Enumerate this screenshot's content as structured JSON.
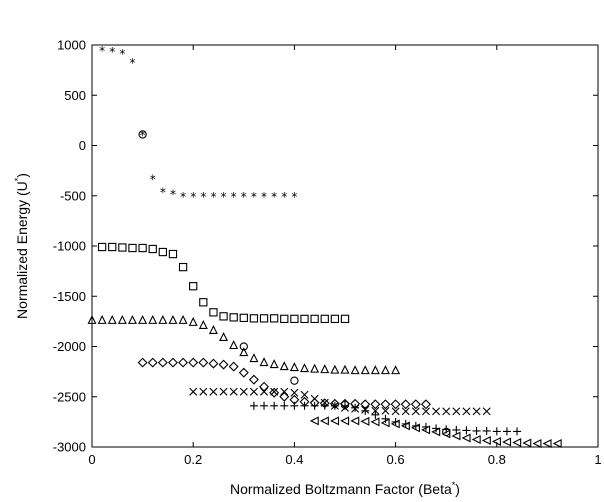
{
  "chart_data": {
    "type": "scatter",
    "title": "",
    "xlabel": "Normalized Boltzmann Factor (Beta",
    "xlabel_sup": "*",
    "xlabel_close": ")",
    "ylabel": "Normalized Energy (U",
    "ylabel_sup": "*",
    "ylabel_close": ")",
    "xlim": [
      0,
      1
    ],
    "ylim": [
      -3000,
      1000
    ],
    "xticks": [
      0,
      0.2,
      0.4,
      0.6,
      0.8,
      1
    ],
    "xtick_labels": [
      "0",
      "0.2",
      "0.4",
      "0.6",
      "0.8",
      "1"
    ],
    "yticks": [
      1000,
      500,
      0,
      -500,
      -1000,
      -1500,
      -2000,
      -2500,
      -3000
    ],
    "ytick_labels": [
      "1000",
      "500",
      "0",
      "-500",
      "-1000",
      "-1500",
      "-2000",
      "-2500",
      "-3000"
    ],
    "grid": false,
    "series": [
      {
        "marker": "asterisk",
        "x": [
          0.02,
          0.04,
          0.06,
          0.08,
          0.1,
          0.12,
          0.14,
          0.16,
          0.18,
          0.2,
          0.22,
          0.24,
          0.26,
          0.28,
          0.3,
          0.32,
          0.34,
          0.36,
          0.38,
          0.4
        ],
        "y": [
          950,
          940,
          920,
          830,
          110,
          -330,
          -460,
          -480,
          -500,
          -500,
          -500,
          -500,
          -500,
          -500,
          -500,
          -500,
          -500,
          -500,
          -500,
          -500
        ]
      },
      {
        "marker": "square",
        "x": [
          0.02,
          0.04,
          0.06,
          0.08,
          0.1,
          0.12,
          0.14,
          0.16,
          0.18,
          0.2,
          0.22,
          0.24,
          0.26,
          0.28,
          0.3,
          0.32,
          0.34,
          0.36,
          0.38,
          0.4,
          0.42,
          0.44,
          0.46,
          0.48,
          0.5
        ],
        "y": [
          -1010,
          -1010,
          -1015,
          -1020,
          -1020,
          -1030,
          -1060,
          -1080,
          -1210,
          -1400,
          -1560,
          -1660,
          -1700,
          -1710,
          -1715,
          -1720,
          -1720,
          -1720,
          -1725,
          -1725,
          -1725,
          -1725,
          -1725,
          -1725,
          -1725
        ]
      },
      {
        "marker": "triangle-up",
        "x": [
          0.0,
          0.02,
          0.04,
          0.06,
          0.08,
          0.1,
          0.12,
          0.14,
          0.16,
          0.18,
          0.2,
          0.22,
          0.24,
          0.26,
          0.28,
          0.3,
          0.32,
          0.34,
          0.36,
          0.38,
          0.4,
          0.42,
          0.44,
          0.46,
          0.48,
          0.5,
          0.52,
          0.54,
          0.56,
          0.58,
          0.6
        ],
        "y": [
          -1740,
          -1740,
          -1740,
          -1740,
          -1740,
          -1740,
          -1740,
          -1740,
          -1740,
          -1740,
          -1760,
          -1790,
          -1840,
          -1910,
          -1990,
          -2060,
          -2120,
          -2160,
          -2180,
          -2200,
          -2210,
          -2220,
          -2225,
          -2230,
          -2235,
          -2235,
          -2240,
          -2240,
          -2240,
          -2240,
          -2240
        ]
      },
      {
        "marker": "diamond",
        "x": [
          0.1,
          0.12,
          0.14,
          0.16,
          0.18,
          0.2,
          0.22,
          0.24,
          0.26,
          0.28,
          0.3,
          0.32,
          0.34,
          0.36,
          0.38,
          0.4,
          0.42,
          0.44,
          0.46,
          0.48,
          0.5,
          0.52,
          0.54,
          0.56,
          0.58,
          0.6,
          0.62,
          0.64,
          0.66
        ],
        "y": [
          -2160,
          -2160,
          -2160,
          -2160,
          -2160,
          -2160,
          -2160,
          -2170,
          -2180,
          -2200,
          -2260,
          -2330,
          -2400,
          -2460,
          -2500,
          -2530,
          -2550,
          -2560,
          -2565,
          -2570,
          -2570,
          -2570,
          -2575,
          -2575,
          -2575,
          -2575,
          -2575,
          -2575,
          -2575
        ]
      },
      {
        "marker": "x",
        "x": [
          0.2,
          0.22,
          0.24,
          0.26,
          0.28,
          0.3,
          0.32,
          0.34,
          0.36,
          0.38,
          0.4,
          0.42,
          0.44,
          0.46,
          0.48,
          0.5,
          0.52,
          0.54,
          0.56,
          0.58,
          0.6,
          0.62,
          0.64,
          0.66,
          0.68,
          0.7,
          0.72,
          0.74,
          0.76,
          0.78
        ],
        "y": [
          -2450,
          -2450,
          -2450,
          -2450,
          -2450,
          -2450,
          -2450,
          -2450,
          -2450,
          -2450,
          -2460,
          -2480,
          -2520,
          -2560,
          -2590,
          -2610,
          -2620,
          -2630,
          -2640,
          -2640,
          -2645,
          -2645,
          -2645,
          -2645,
          -2645,
          -2645,
          -2645,
          -2645,
          -2645,
          -2645
        ]
      },
      {
        "marker": "plus",
        "x": [
          0.32,
          0.34,
          0.36,
          0.38,
          0.4,
          0.42,
          0.44,
          0.46,
          0.48,
          0.5,
          0.52,
          0.54,
          0.56,
          0.58,
          0.6,
          0.62,
          0.64,
          0.66,
          0.68,
          0.7,
          0.72,
          0.74,
          0.76,
          0.78,
          0.8,
          0.82,
          0.84
        ],
        "y": [
          -2590,
          -2590,
          -2590,
          -2590,
          -2590,
          -2590,
          -2590,
          -2590,
          -2590,
          -2590,
          -2610,
          -2640,
          -2680,
          -2720,
          -2750,
          -2770,
          -2790,
          -2800,
          -2815,
          -2825,
          -2830,
          -2835,
          -2840,
          -2840,
          -2845,
          -2845,
          -2845
        ]
      },
      {
        "marker": "triangle-left",
        "x": [
          0.44,
          0.46,
          0.48,
          0.5,
          0.52,
          0.54,
          0.56,
          0.58,
          0.6,
          0.62,
          0.64,
          0.66,
          0.68,
          0.7,
          0.72,
          0.74,
          0.76,
          0.78,
          0.8,
          0.82,
          0.84,
          0.86,
          0.88,
          0.9,
          0.92
        ],
        "y": [
          -2740,
          -2740,
          -2740,
          -2740,
          -2740,
          -2745,
          -2750,
          -2760,
          -2770,
          -2790,
          -2810,
          -2830,
          -2850,
          -2870,
          -2890,
          -2910,
          -2925,
          -2935,
          -2945,
          -2950,
          -2955,
          -2960,
          -2965,
          -2965,
          -2965
        ]
      }
    ],
    "annotations": [
      {
        "marker": "circle",
        "x": 0.1,
        "y": 110
      },
      {
        "marker": "circle",
        "x": 0.3,
        "y": -2000
      },
      {
        "marker": "circle",
        "x": 0.4,
        "y": -2340
      },
      {
        "marker": "circle",
        "x": 0.5,
        "y": -2580
      },
      {
        "marker": "circle",
        "x": 0.7,
        "y": -2850
      }
    ]
  }
}
